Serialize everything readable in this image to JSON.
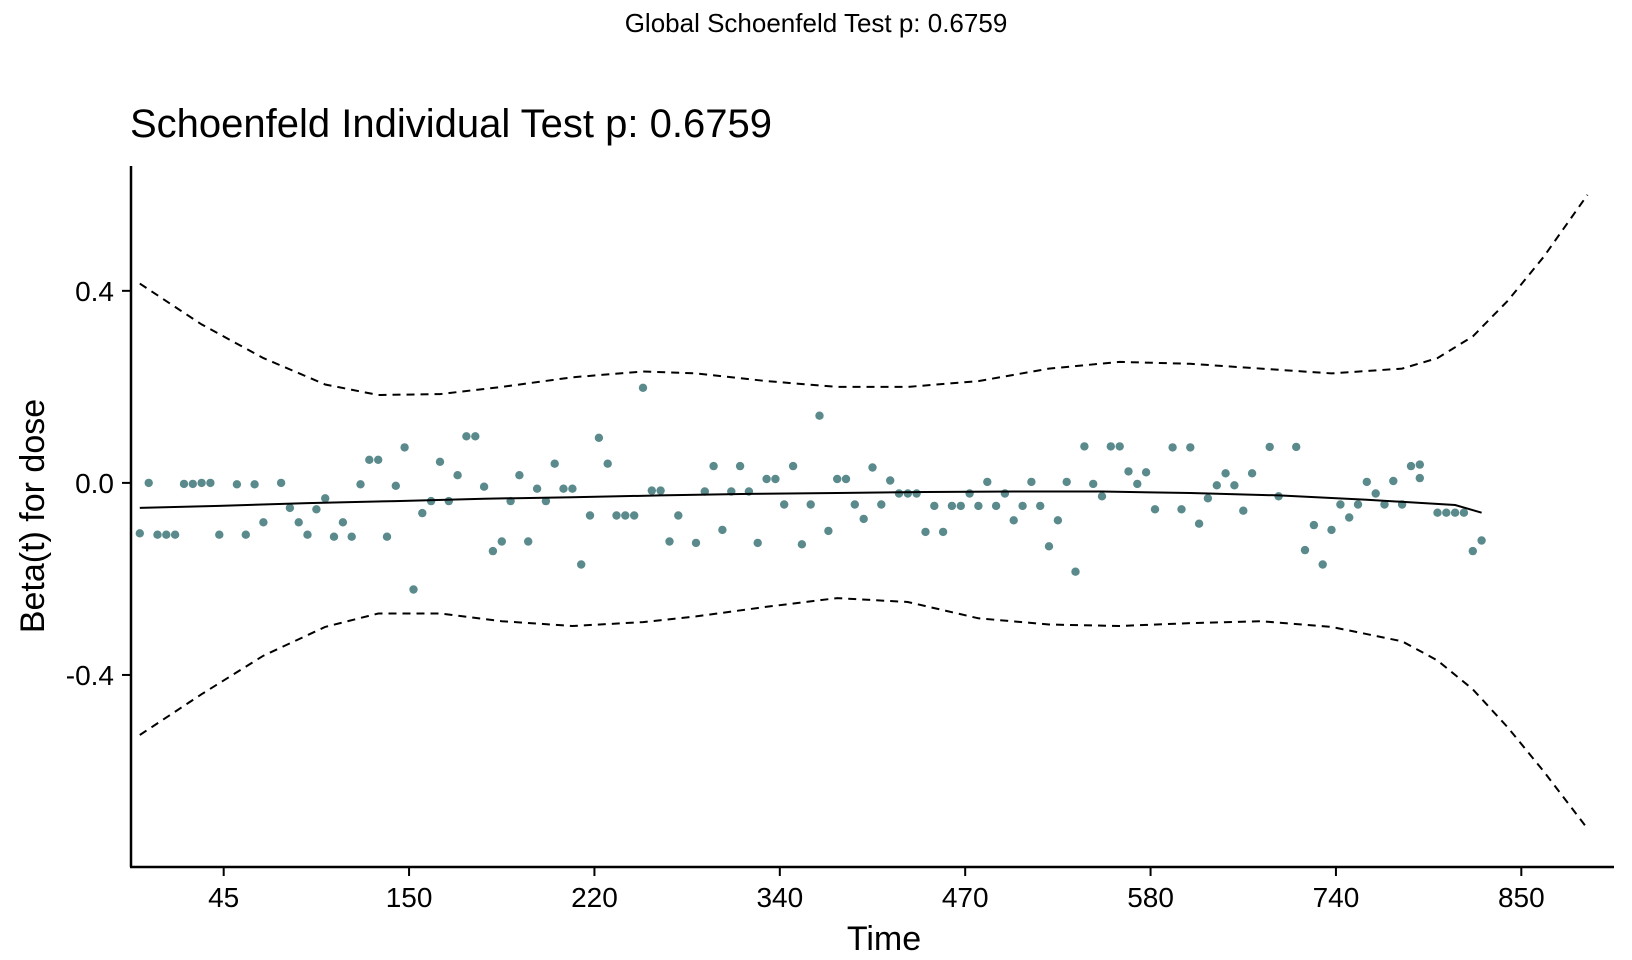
{
  "page_title": "Global Schoenfeld Test p: 0.6759",
  "chart_data": {
    "type": "scatter",
    "title": "Schoenfeld Individual Test p: 0.6759",
    "xlabel": "Time",
    "ylabel": "Beta(t) for dose",
    "xlim": [
      0,
      168
    ],
    "ylim": [
      -0.8,
      0.66
    ],
    "x_tick_labels": [
      {
        "pos": 10.5,
        "label": "45"
      },
      {
        "pos": 31.5,
        "label": "150"
      },
      {
        "pos": 52.5,
        "label": "220"
      },
      {
        "pos": 73.5,
        "label": "340"
      },
      {
        "pos": 94.5,
        "label": "470"
      },
      {
        "pos": 115.5,
        "label": "580"
      },
      {
        "pos": 136.5,
        "label": "740"
      },
      {
        "pos": 157.5,
        "label": "850"
      }
    ],
    "y_ticks": [
      {
        "value": 0.4,
        "label": "0.4"
      },
      {
        "value": 0.0,
        "label": "0.0"
      },
      {
        "value": -0.4,
        "label": "-0.4"
      }
    ],
    "grid": false,
    "legend": "none",
    "colors": {
      "points": "#5b8a8c",
      "fit": "#000000",
      "band": "#000000"
    },
    "points": [
      [
        1,
        -0.105
      ],
      [
        2,
        0.0
      ],
      [
        3,
        -0.108
      ],
      [
        4,
        -0.108
      ],
      [
        5,
        -0.108
      ],
      [
        6,
        -0.002
      ],
      [
        7,
        -0.002
      ],
      [
        8,
        0.0
      ],
      [
        9,
        0.0
      ],
      [
        10,
        -0.108
      ],
      [
        12,
        -0.003
      ],
      [
        13,
        -0.108
      ],
      [
        14,
        -0.003
      ],
      [
        15,
        -0.082
      ],
      [
        17,
        0.0
      ],
      [
        18,
        -0.052
      ],
      [
        19,
        -0.082
      ],
      [
        20,
        -0.108
      ],
      [
        21,
        -0.055
      ],
      [
        22,
        -0.032
      ],
      [
        23,
        -0.112
      ],
      [
        24,
        -0.082
      ],
      [
        25,
        -0.112
      ],
      [
        26,
        -0.003
      ],
      [
        27,
        0.048
      ],
      [
        28,
        0.048
      ],
      [
        29,
        -0.112
      ],
      [
        30,
        -0.006
      ],
      [
        31,
        0.074
      ],
      [
        32,
        -0.222
      ],
      [
        33,
        -0.063
      ],
      [
        34,
        -0.038
      ],
      [
        35,
        0.044
      ],
      [
        36,
        -0.038
      ],
      [
        37,
        0.016
      ],
      [
        38,
        0.097
      ],
      [
        39,
        0.097
      ],
      [
        40,
        -0.008
      ],
      [
        41,
        -0.142
      ],
      [
        42,
        -0.122
      ],
      [
        43,
        -0.038
      ],
      [
        44,
        0.016
      ],
      [
        45,
        -0.122
      ],
      [
        46,
        -0.012
      ],
      [
        47,
        -0.038
      ],
      [
        48,
        0.04
      ],
      [
        49,
        -0.012
      ],
      [
        50,
        -0.012
      ],
      [
        51,
        -0.17
      ],
      [
        52,
        -0.068
      ],
      [
        53,
        0.094
      ],
      [
        54,
        0.04
      ],
      [
        55,
        -0.068
      ],
      [
        56,
        -0.068
      ],
      [
        57,
        -0.068
      ],
      [
        58,
        0.198
      ],
      [
        59,
        -0.016
      ],
      [
        60,
        -0.016
      ],
      [
        61,
        -0.122
      ],
      [
        62,
        -0.068
      ],
      [
        64,
        -0.125
      ],
      [
        65,
        -0.018
      ],
      [
        66,
        0.035
      ],
      [
        67,
        -0.098
      ],
      [
        68,
        -0.018
      ],
      [
        69,
        0.035
      ],
      [
        70,
        -0.018
      ],
      [
        71,
        -0.125
      ],
      [
        72,
        0.008
      ],
      [
        73,
        0.008
      ],
      [
        74,
        -0.045
      ],
      [
        75,
        0.035
      ],
      [
        76,
        -0.128
      ],
      [
        77,
        -0.045
      ],
      [
        78,
        0.14
      ],
      [
        79,
        -0.1
      ],
      [
        80,
        0.008
      ],
      [
        81,
        0.008
      ],
      [
        82,
        -0.045
      ],
      [
        83,
        -0.075
      ],
      [
        84,
        0.032
      ],
      [
        85,
        -0.045
      ],
      [
        86,
        0.005
      ],
      [
        87,
        -0.022
      ],
      [
        88,
        -0.022
      ],
      [
        89,
        -0.022
      ],
      [
        90,
        -0.102
      ],
      [
        91,
        -0.048
      ],
      [
        92,
        -0.102
      ],
      [
        93,
        -0.048
      ],
      [
        94,
        -0.048
      ],
      [
        95,
        -0.022
      ],
      [
        96,
        -0.048
      ],
      [
        97,
        0.002
      ],
      [
        98,
        -0.048
      ],
      [
        99,
        -0.022
      ],
      [
        100,
        -0.078
      ],
      [
        101,
        -0.048
      ],
      [
        102,
        0.002
      ],
      [
        103,
        -0.048
      ],
      [
        104,
        -0.132
      ],
      [
        105,
        -0.078
      ],
      [
        106,
        0.002
      ],
      [
        107,
        -0.185
      ],
      [
        108,
        0.076
      ],
      [
        109,
        -0.002
      ],
      [
        110,
        -0.028
      ],
      [
        111,
        0.076
      ],
      [
        112,
        0.076
      ],
      [
        113,
        0.024
      ],
      [
        114,
        -0.002
      ],
      [
        115,
        0.022
      ],
      [
        116,
        -0.055
      ],
      [
        118,
        0.074
      ],
      [
        119,
        -0.055
      ],
      [
        120,
        0.074
      ],
      [
        121,
        -0.085
      ],
      [
        122,
        -0.032
      ],
      [
        123,
        -0.005
      ],
      [
        124,
        0.02
      ],
      [
        125,
        -0.005
      ],
      [
        126,
        -0.058
      ],
      [
        127,
        0.02
      ],
      [
        129,
        0.075
      ],
      [
        130,
        -0.028
      ],
      [
        132,
        0.075
      ],
      [
        133,
        -0.14
      ],
      [
        134,
        -0.088
      ],
      [
        135,
        -0.17
      ],
      [
        136,
        -0.098
      ],
      [
        137,
        -0.045
      ],
      [
        138,
        -0.072
      ],
      [
        139,
        -0.045
      ],
      [
        140,
        0.002
      ],
      [
        141,
        -0.022
      ],
      [
        142,
        -0.045
      ],
      [
        143,
        0.004
      ],
      [
        144,
        -0.045
      ],
      [
        145,
        0.035
      ],
      [
        146,
        0.038
      ],
      [
        146,
        0.01
      ],
      [
        148,
        -0.062
      ],
      [
        149,
        -0.062
      ],
      [
        150,
        -0.062
      ],
      [
        151,
        -0.062
      ],
      [
        152,
        -0.142
      ],
      [
        153,
        -0.12
      ]
    ],
    "fit_line": [
      [
        1,
        -0.052
      ],
      [
        10,
        -0.048
      ],
      [
        20,
        -0.042
      ],
      [
        30,
        -0.038
      ],
      [
        40,
        -0.033
      ],
      [
        50,
        -0.03
      ],
      [
        60,
        -0.026
      ],
      [
        70,
        -0.023
      ],
      [
        80,
        -0.021
      ],
      [
        90,
        -0.019
      ],
      [
        100,
        -0.018
      ],
      [
        110,
        -0.018
      ],
      [
        120,
        -0.021
      ],
      [
        130,
        -0.026
      ],
      [
        140,
        -0.035
      ],
      [
        150,
        -0.046
      ],
      [
        153,
        -0.062
      ]
    ],
    "upper_band": [
      [
        1,
        0.415
      ],
      [
        8,
        0.33
      ],
      [
        15,
        0.26
      ],
      [
        22,
        0.205
      ],
      [
        28,
        0.183
      ],
      [
        35,
        0.185
      ],
      [
        42,
        0.2
      ],
      [
        50,
        0.22
      ],
      [
        58,
        0.232
      ],
      [
        64,
        0.228
      ],
      [
        72,
        0.212
      ],
      [
        80,
        0.2
      ],
      [
        88,
        0.2
      ],
      [
        96,
        0.212
      ],
      [
        104,
        0.238
      ],
      [
        112,
        0.252
      ],
      [
        120,
        0.248
      ],
      [
        128,
        0.238
      ],
      [
        136,
        0.228
      ],
      [
        144,
        0.238
      ],
      [
        148,
        0.26
      ],
      [
        152,
        0.305
      ],
      [
        156,
        0.38
      ],
      [
        160,
        0.47
      ],
      [
        165,
        0.6
      ]
    ],
    "upper_band_x_note": "",
    "lower_band": [
      [
        1,
        -0.525
      ],
      [
        8,
        -0.44
      ],
      [
        15,
        -0.36
      ],
      [
        22,
        -0.3
      ],
      [
        28,
        -0.272
      ],
      [
        35,
        -0.272
      ],
      [
        42,
        -0.288
      ],
      [
        50,
        -0.298
      ],
      [
        58,
        -0.29
      ],
      [
        64,
        -0.278
      ],
      [
        72,
        -0.258
      ],
      [
        80,
        -0.24
      ],
      [
        88,
        -0.248
      ],
      [
        96,
        -0.282
      ],
      [
        104,
        -0.295
      ],
      [
        112,
        -0.298
      ],
      [
        120,
        -0.292
      ],
      [
        128,
        -0.288
      ],
      [
        136,
        -0.3
      ],
      [
        144,
        -0.33
      ],
      [
        148,
        -0.37
      ],
      [
        152,
        -0.43
      ],
      [
        156,
        -0.51
      ],
      [
        160,
        -0.6
      ],
      [
        165,
        -0.72
      ]
    ]
  }
}
